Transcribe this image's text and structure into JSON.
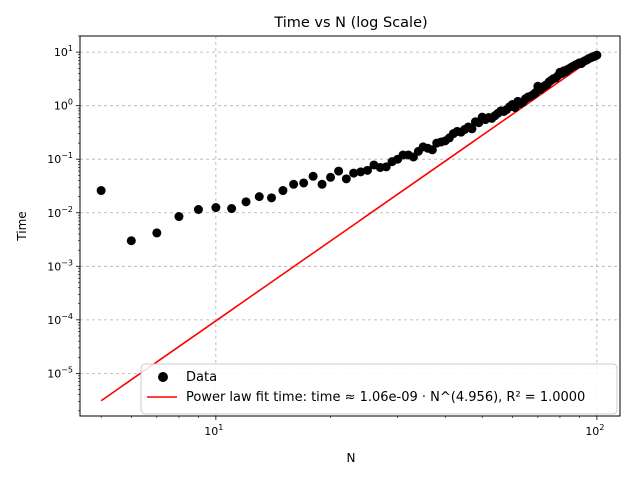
{
  "chart_data": {
    "type": "scatter",
    "title": "Time vs N (log Scale)",
    "xlabel": "N",
    "ylabel": "Time",
    "xscale": "log",
    "yscale": "log",
    "xlim": [
      4.4,
      115
    ],
    "ylim": [
      1.6e-06,
      20
    ],
    "grid": true,
    "legend_position": "lower-right",
    "x_ticks": [
      {
        "value": 10,
        "label": "10",
        "sup": "1"
      },
      {
        "value": 100,
        "label": "10",
        "sup": "2"
      }
    ],
    "y_ticks": [
      {
        "value": 1e-05,
        "label": "10",
        "sup": "−5"
      },
      {
        "value": 0.0001,
        "label": "10",
        "sup": "−4"
      },
      {
        "value": 0.001,
        "label": "10",
        "sup": "−3"
      },
      {
        "value": 0.01,
        "label": "10",
        "sup": "−2"
      },
      {
        "value": 0.1,
        "label": "10",
        "sup": "−1"
      },
      {
        "value": 1,
        "label": "10",
        "sup": "0"
      },
      {
        "value": 10,
        "label": "10",
        "sup": "1"
      }
    ],
    "series": [
      {
        "name": "Data",
        "kind": "scatter",
        "color": "#000000",
        "x": [
          5,
          6,
          7,
          8,
          9,
          10,
          11,
          12,
          13,
          14,
          15,
          16,
          17,
          18,
          19,
          20,
          21,
          22,
          23,
          24,
          25,
          26,
          27,
          28,
          29,
          30,
          31,
          32,
          33,
          34,
          35,
          36,
          37,
          38,
          39,
          40,
          41,
          42,
          43,
          44,
          45,
          46,
          47,
          48,
          49,
          50,
          51,
          52,
          53,
          54,
          55,
          56,
          57,
          58,
          59,
          60,
          61,
          62,
          63,
          64,
          65,
          66,
          67,
          68,
          69,
          70,
          71,
          72,
          73,
          74,
          75,
          76,
          77,
          78,
          79,
          80,
          81,
          82,
          83,
          84,
          85,
          86,
          87,
          88,
          89,
          90,
          91,
          92,
          93,
          94,
          95,
          96,
          97,
          98,
          99,
          100
        ],
        "y": [
          0.026,
          0.003,
          0.0042,
          0.0085,
          0.0115,
          0.0125,
          0.012,
          0.016,
          0.02,
          0.019,
          0.026,
          0.034,
          0.036,
          0.048,
          0.034,
          0.046,
          0.06,
          0.043,
          0.055,
          0.058,
          0.062,
          0.078,
          0.07,
          0.072,
          0.09,
          0.1,
          0.12,
          0.12,
          0.11,
          0.14,
          0.17,
          0.16,
          0.15,
          0.2,
          0.21,
          0.22,
          0.25,
          0.3,
          0.33,
          0.32,
          0.36,
          0.4,
          0.37,
          0.5,
          0.48,
          0.61,
          0.55,
          0.6,
          0.58,
          0.65,
          0.72,
          0.8,
          0.78,
          0.85,
          0.95,
          1.05,
          0.92,
          1.2,
          1.1,
          1.18,
          1.35,
          1.45,
          1.5,
          1.6,
          1.75,
          2.3,
          2.0,
          2.2,
          2.35,
          2.5,
          2.8,
          3.0,
          3.2,
          3.3,
          3.6,
          4.2,
          4.0,
          4.5,
          4.3,
          4.8,
          5.0,
          5.3,
          5.5,
          5.8,
          6.0,
          6.3,
          6.1,
          6.6,
          6.9,
          7.1,
          7.5,
          7.8,
          8.0,
          8.2,
          8.5,
          8.8
        ]
      },
      {
        "name": "Power law fit time: time ≈ 1.06e-09 · N^(4.956), R² = 1.0000",
        "kind": "line",
        "color": "#ff0000",
        "coef": 1.06e-09,
        "exponent": 4.956,
        "x_range": [
          5,
          100
        ]
      }
    ]
  }
}
